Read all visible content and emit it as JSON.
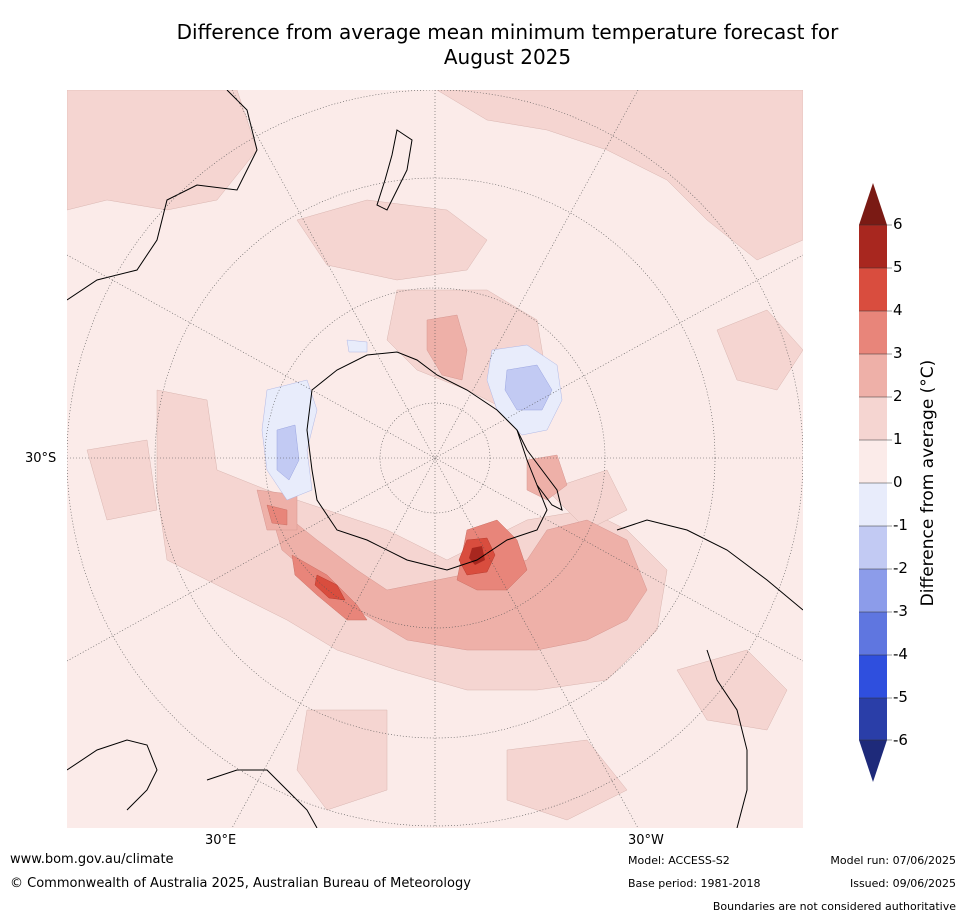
{
  "title": {
    "line1": "Difference from average mean minimum temperature forecast for",
    "line2": "August 2025"
  },
  "map": {
    "projection": "south-polar-stereographic",
    "lat_label": "30°S",
    "lon_labels": [
      "30°E",
      "30°W"
    ],
    "anomaly_hotspots": [
      {
        "region": "Southern Ocean south of Australia",
        "value_range": "3 to 4"
      },
      {
        "region": "Southern Ocean near Antarctic Peninsula",
        "value_range": "4 to 5"
      },
      {
        "region": "Weddell Sea / east of Antarctic Peninsula",
        "value_range": "-1 to -2"
      },
      {
        "region": "Ross Sea",
        "value_range": "-1 to -2"
      }
    ]
  },
  "colorbar": {
    "title": "Difference from average (°C)",
    "ticks": [
      "6",
      "5",
      "4",
      "3",
      "2",
      "1",
      "0",
      "-1",
      "-2",
      "-3",
      "-4",
      "-5",
      "-6"
    ],
    "colors": {
      "above6": "#7a1a14",
      "5to6": "#a8271f",
      "4to5": "#d94d3e",
      "3to4": "#e8857a",
      "2to3": "#eeb0a8",
      "1to2": "#f5d5d1",
      "0to1": "#fbebe9",
      "-1to0": "#e8ecfb",
      "-2to-1": "#c2caf3",
      "-3to-2": "#8c9cea",
      "-4to-3": "#5f76e0",
      "-5to-4": "#2f4fde",
      "-6to-5": "#2a3ea8",
      "below-6": "#1e2a7a"
    }
  },
  "footer": {
    "website": "www.bom.gov.au/climate",
    "copyright": "© Commonwealth of Australia 2025, Australian Bureau of Meteorology",
    "model": "Model: ACCESS-S2",
    "base_period": "Base period: 1981-2018",
    "model_run": "Model run: 07/06/2025",
    "issued": "Issued: 09/06/2025",
    "disclaimer": "Boundaries are not considered authoritative"
  }
}
